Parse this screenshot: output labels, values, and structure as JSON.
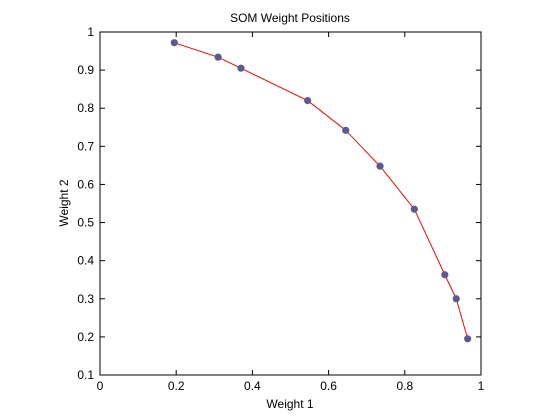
{
  "chart_data": {
    "type": "line",
    "title": "SOM Weight Positions",
    "xlabel": "Weight 1",
    "ylabel": "Weight 2",
    "xlim": [
      0,
      1
    ],
    "ylim": [
      0.1,
      1
    ],
    "xticks": [
      0,
      0.2,
      0.4,
      0.6,
      0.8,
      1
    ],
    "xtick_labels": [
      "0",
      "0.2",
      "0.4",
      "0.6",
      "0.8",
      "1"
    ],
    "yticks": [
      0.1,
      0.2,
      0.3,
      0.4,
      0.5,
      0.6,
      0.7,
      0.8,
      0.9,
      1
    ],
    "ytick_labels": [
      "0.1",
      "0.2",
      "0.3",
      "0.4",
      "0.5",
      "0.6",
      "0.7",
      "0.8",
      "0.9",
      "1"
    ],
    "grid": false,
    "series": [
      {
        "x": [
          0.195,
          0.31,
          0.37,
          0.545,
          0.645,
          0.735,
          0.825,
          0.905,
          0.935,
          0.965
        ],
        "y": [
          0.972,
          0.934,
          0.905,
          0.82,
          0.742,
          0.648,
          0.535,
          0.363,
          0.3,
          0.195
        ],
        "line_color": "#ff0000",
        "marker_color": "#5b5b8f"
      }
    ]
  }
}
